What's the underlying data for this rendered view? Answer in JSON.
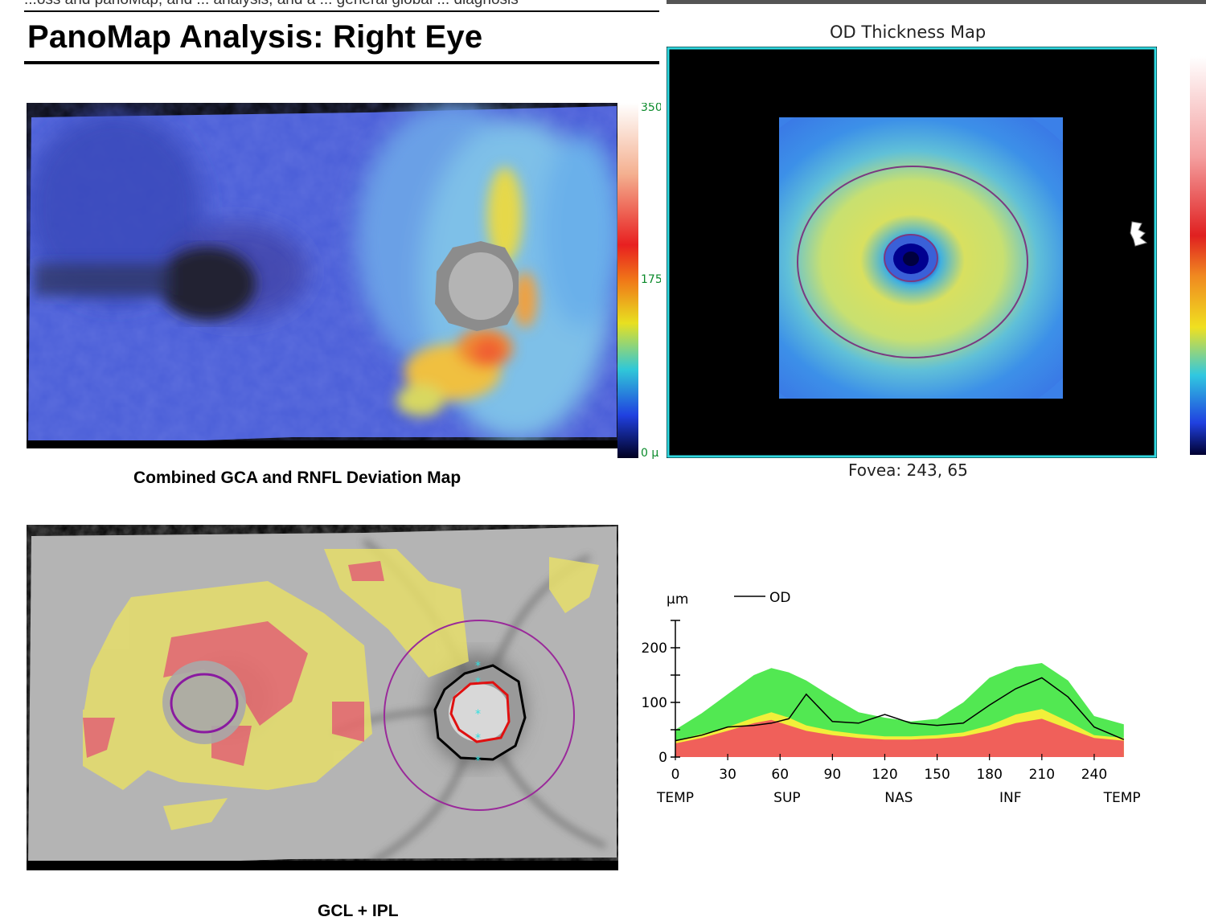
{
  "header": {
    "truncated_text": "...oss and panoMap, and ... analysis, and a ... general global ... diagnosis",
    "title": "PanoMap Analysis: Right Eye"
  },
  "deviation_map": {
    "caption": "Combined GCA and RNFL Deviation Map",
    "scale": {
      "max": "350",
      "mid": "175",
      "min": "0 µ"
    }
  },
  "thickness_map": {
    "title": "OD Thickness Map",
    "fovea": "Fovea: 243, 65"
  },
  "gcl_map": {
    "caption_partial": "GCL + IPL"
  },
  "profile_chart": {
    "unit_label": "µm",
    "legend": "OD"
  },
  "chart_data": {
    "type": "area",
    "title": "",
    "xlabel": "",
    "ylabel": "µm",
    "xlim": [
      0,
      258
    ],
    "ylim": [
      0,
      250
    ],
    "x_ticks": [
      0,
      30,
      60,
      90,
      120,
      150,
      180,
      210,
      240
    ],
    "y_ticks": [
      0,
      100,
      200
    ],
    "region_labels": [
      {
        "label": "TEMP",
        "x": 0
      },
      {
        "label": "SUP",
        "x": 64
      },
      {
        "label": "NAS",
        "x": 128
      },
      {
        "label": "INF",
        "x": 192
      },
      {
        "label": "TEMP",
        "x": 256
      }
    ],
    "x": [
      0,
      15,
      30,
      45,
      55,
      65,
      75,
      90,
      105,
      120,
      135,
      150,
      165,
      180,
      195,
      210,
      225,
      240,
      257
    ],
    "series": [
      {
        "name": "red band",
        "color": "#f0605a",
        "values": [
          25,
          35,
          48,
          62,
          68,
          58,
          48,
          40,
          35,
          32,
          32,
          34,
          38,
          48,
          62,
          70,
          52,
          35,
          30
        ]
      },
      {
        "name": "yellow band",
        "color": "#f2ef3a",
        "values": [
          30,
          42,
          55,
          72,
          82,
          72,
          58,
          48,
          42,
          38,
          38,
          40,
          45,
          58,
          78,
          88,
          65,
          40,
          35
        ]
      },
      {
        "name": "green band",
        "color": "#52e852",
        "values": [
          50,
          80,
          115,
          150,
          163,
          155,
          140,
          110,
          82,
          72,
          65,
          70,
          100,
          145,
          165,
          172,
          140,
          75,
          60
        ]
      },
      {
        "name": "OD",
        "color": "#000000",
        "values": [
          30,
          40,
          55,
          58,
          62,
          70,
          115,
          65,
          62,
          78,
          62,
          58,
          62,
          95,
          125,
          145,
          110,
          55,
          32
        ]
      }
    ]
  }
}
